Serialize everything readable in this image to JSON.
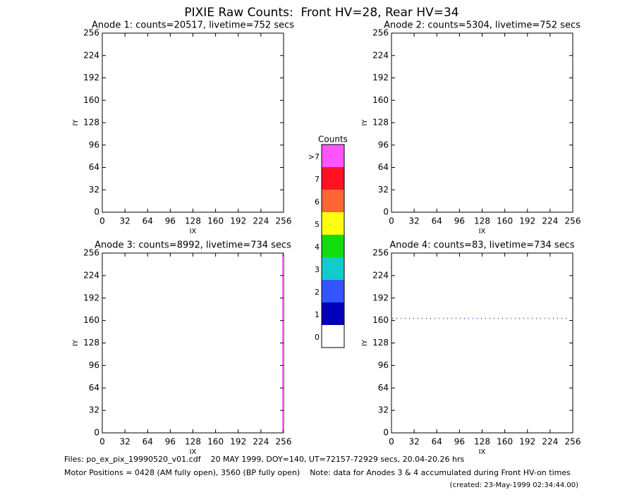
{
  "title": "PIXIE Raw Counts:  Front HV=28, Rear HV=34",
  "chart_data": [
    {
      "type": "heatmap",
      "title": "Anode 1: counts=20517, livetime=752 secs",
      "xlabel": "IX",
      "ylabel": "IY",
      "xlim": [
        0,
        256
      ],
      "ylim": [
        0,
        256
      ],
      "xticks": [
        0,
        32,
        64,
        96,
        128,
        160,
        192,
        224,
        256
      ],
      "yticks": [
        0,
        32,
        64,
        96,
        128,
        160,
        192,
        224,
        256
      ]
    },
    {
      "type": "heatmap",
      "title": "Anode 2: counts=5304, livetime=752 secs",
      "xlabel": "IX",
      "ylabel": "IY",
      "xlim": [
        0,
        256
      ],
      "ylim": [
        0,
        256
      ],
      "xticks": [
        0,
        32,
        64,
        96,
        128,
        160,
        192,
        224,
        256
      ],
      "yticks": [
        0,
        32,
        64,
        96,
        128,
        160,
        192,
        224,
        256
      ]
    },
    {
      "type": "heatmap",
      "title": "Anode 3: counts=8992, livetime=734 secs",
      "xlabel": "IX",
      "ylabel": "IY",
      "xlim": [
        0,
        256
      ],
      "ylim": [
        0,
        256
      ],
      "xticks": [
        0,
        32,
        64,
        96,
        128,
        160,
        192,
        224,
        256
      ],
      "yticks": [
        0,
        32,
        64,
        96,
        128,
        160,
        192,
        224,
        256
      ],
      "line_ix": 255,
      "line_color": "#ff66ff"
    },
    {
      "type": "heatmap",
      "title": "Anode 4: counts=83, livetime=734 secs",
      "xlabel": "IX",
      "ylabel": "IY",
      "xlim": [
        0,
        256
      ],
      "ylim": [
        0,
        256
      ],
      "xticks": [
        0,
        32,
        64,
        96,
        128,
        160,
        192,
        224,
        256
      ],
      "yticks": [
        0,
        32,
        64,
        96,
        128,
        160,
        192,
        224,
        256
      ],
      "line_iy": 163,
      "line_color": "#2233cc"
    }
  ],
  "colorbar": {
    "title": "Counts",
    "categories": [
      "0",
      "1",
      "2",
      "3",
      "4",
      "5",
      "6",
      "7",
      ">7"
    ],
    "colors": [
      "#ffffff",
      "#0000bb",
      "#3355ff",
      "#11cccc",
      "#11dd11",
      "#ffff11",
      "#ff6633",
      "#ff1122",
      "#ff55ff"
    ]
  },
  "footer": [
    "Files: po_ex_pix_19990520_v01.cdf    20 MAY 1999, DOY=140, UT=72157-72929 secs, 20.04-20.26 hrs",
    "Motor Positions = 0428 (AM fully open), 3560 (BP fully open)    Note: data for Anodes 3 & 4 accumulated during Front HV-on times",
    "(created: 23-May-1999 02:34:44.00)"
  ]
}
